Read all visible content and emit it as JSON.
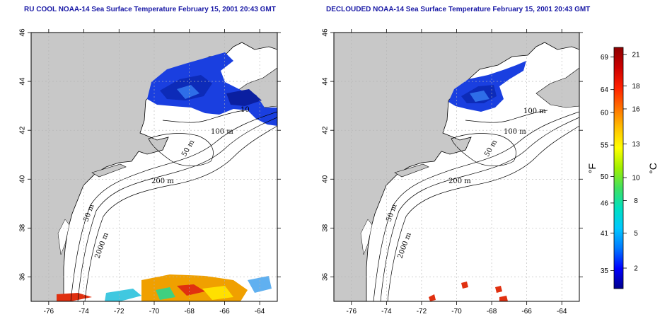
{
  "maps": [
    {
      "id": "rucool",
      "title": "RU COOL NOAA-14 Sea Surface Temperature February 15, 2001 20:43 GMT",
      "contour_labels": [
        "100 m",
        "50 m",
        "200 m",
        "50 m",
        "2000 m",
        "10"
      ]
    },
    {
      "id": "declouded",
      "title": "DECLOUDED NOAA-14 Sea Surface Temperature February 15, 2001 20:43 GMT",
      "contour_labels": [
        "100 m",
        "100 m",
        "50 m",
        "200 m",
        "50 m",
        "2000 m"
      ]
    }
  ],
  "axes": {
    "lon_ticks": [
      "-76",
      "-74",
      "-72",
      "-70",
      "-68",
      "-66",
      "-64"
    ],
    "lat_ticks": [
      "36",
      "38",
      "40",
      "42",
      "44",
      "46"
    ],
    "lon_range": [
      -77,
      -63
    ],
    "lat_range": [
      35,
      46
    ]
  },
  "colorbar": {
    "fahrenheit_label": "°F",
    "celsius_label": "°C",
    "fahrenheit_ticks": [
      "35",
      "41",
      "46",
      "50",
      "55",
      "60",
      "64",
      "69"
    ],
    "celsius_ticks": [
      "2",
      "5",
      "8",
      "10",
      "13",
      "16",
      "18",
      "21"
    ],
    "colors": [
      "#00008b",
      "#0000ff",
      "#0078ff",
      "#00c8ff",
      "#00e0c0",
      "#40e060",
      "#a0f000",
      "#ffff00",
      "#ffc000",
      "#ff7000",
      "#ff2000",
      "#cc0000",
      "#8b0000"
    ]
  },
  "colors": {
    "land": "#c8c8c8",
    "water": "#ffffff",
    "grid": "#b4b4b4",
    "title": "#1a1aa6"
  }
}
